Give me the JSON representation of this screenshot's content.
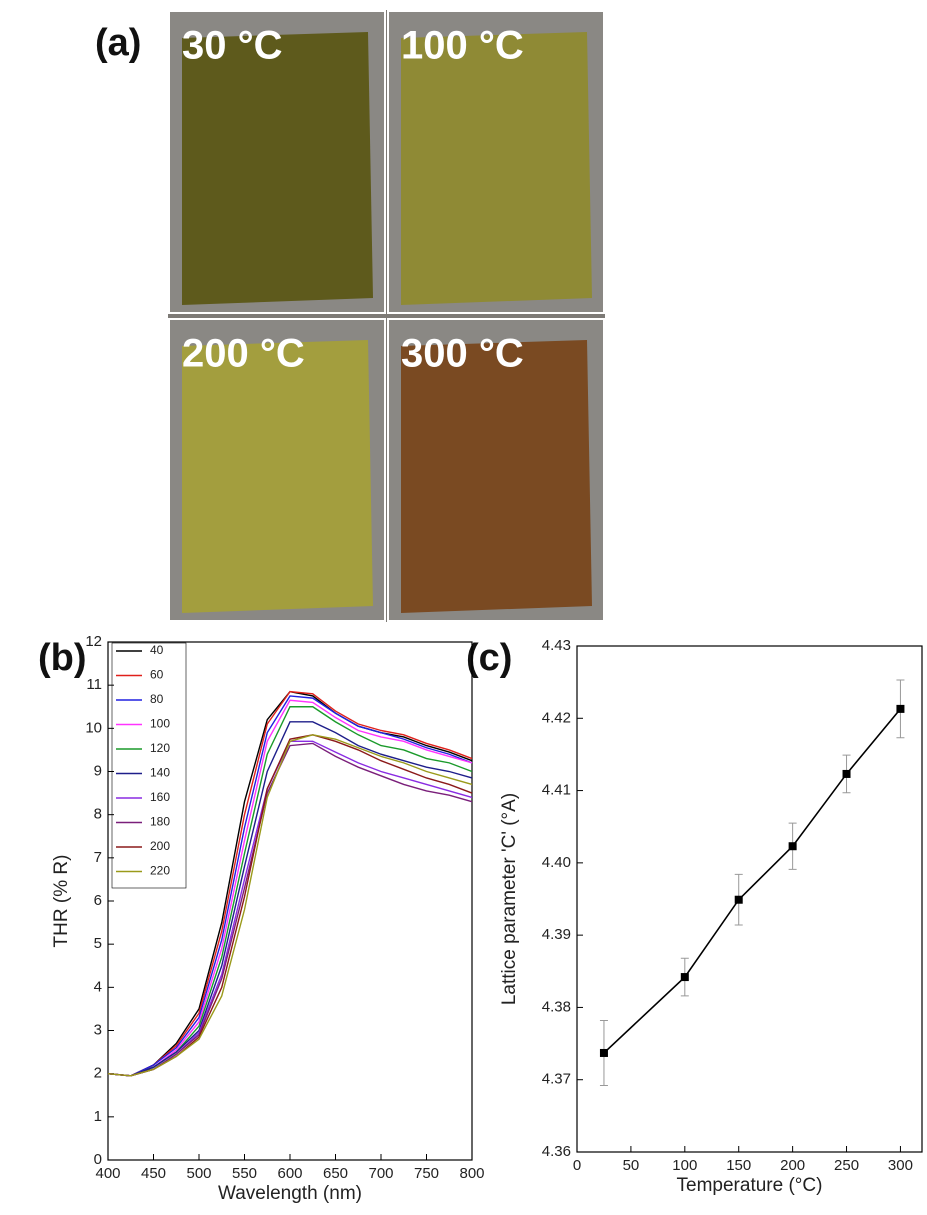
{
  "photos": {
    "label": "(a)",
    "samples": [
      {
        "label": "30 °C",
        "color": "#5e5a1c"
      },
      {
        "label": "100 °C",
        "color": "#8f8a35"
      },
      {
        "label": "200 °C",
        "color": "#a39e3e"
      },
      {
        "label": "300 °C",
        "color": "#7a4a22"
      }
    ]
  },
  "chart_data": [
    {
      "type": "line",
      "label": "(b)",
      "xlabel": "Wavelength (nm)",
      "ylabel": "THR (% R)",
      "x": [
        400,
        425,
        450,
        475,
        500,
        525,
        550,
        575,
        600,
        625,
        650,
        675,
        700,
        725,
        750,
        775,
        800
      ],
      "xlim": [
        400,
        800
      ],
      "xticks": [
        400,
        450,
        500,
        550,
        600,
        650,
        700,
        750,
        800
      ],
      "ylim": [
        0,
        12
      ],
      "yticks": [
        0,
        1,
        2,
        3,
        4,
        5,
        6,
        7,
        8,
        9,
        10,
        11,
        12
      ],
      "legend": "upper-left",
      "series": [
        {
          "name": "40",
          "color": "#000000",
          "values": [
            2.0,
            1.95,
            2.2,
            2.7,
            3.5,
            5.5,
            8.3,
            10.2,
            10.85,
            10.75,
            10.35,
            10.05,
            9.9,
            9.8,
            9.6,
            9.45,
            9.25
          ]
        },
        {
          "name": "60",
          "color": "#e0201b",
          "values": [
            2.0,
            1.95,
            2.2,
            2.65,
            3.4,
            5.3,
            8.0,
            10.1,
            10.85,
            10.8,
            10.4,
            10.1,
            9.95,
            9.85,
            9.65,
            9.5,
            9.3
          ]
        },
        {
          "name": "80",
          "color": "#2020e0",
          "values": [
            2.0,
            1.95,
            2.2,
            2.6,
            3.3,
            5.1,
            7.7,
            9.9,
            10.75,
            10.7,
            10.35,
            10.05,
            9.9,
            9.75,
            9.55,
            9.4,
            9.2
          ]
        },
        {
          "name": "100",
          "color": "#ff33ff",
          "values": [
            2.0,
            1.95,
            2.15,
            2.55,
            3.2,
            4.9,
            7.4,
            9.7,
            10.65,
            10.6,
            10.25,
            9.95,
            9.8,
            9.7,
            9.5,
            9.35,
            9.2
          ]
        },
        {
          "name": "120",
          "color": "#1a9a2a",
          "values": [
            2.0,
            1.95,
            2.15,
            2.5,
            3.1,
            4.7,
            7.1,
            9.4,
            10.5,
            10.5,
            10.15,
            9.85,
            9.6,
            9.5,
            9.3,
            9.2,
            9.0
          ]
        },
        {
          "name": "140",
          "color": "#1e1e8a",
          "values": [
            2.0,
            1.95,
            2.15,
            2.5,
            3.0,
            4.5,
            6.8,
            9.0,
            10.15,
            10.15,
            9.9,
            9.6,
            9.4,
            9.25,
            9.1,
            9.0,
            8.85
          ]
        },
        {
          "name": "160",
          "color": "#8a2be2",
          "values": [
            2.0,
            1.95,
            2.1,
            2.45,
            2.95,
            4.3,
            6.5,
            8.6,
            9.7,
            9.7,
            9.45,
            9.2,
            9.0,
            8.85,
            8.7,
            8.55,
            8.4
          ]
        },
        {
          "name": "180",
          "color": "#7a1f7a",
          "values": [
            2.0,
            1.95,
            2.1,
            2.45,
            2.9,
            4.2,
            6.3,
            8.5,
            9.6,
            9.65,
            9.35,
            9.1,
            8.9,
            8.7,
            8.55,
            8.45,
            8.3
          ]
        },
        {
          "name": "200",
          "color": "#8b1a1a",
          "values": [
            2.0,
            1.95,
            2.1,
            2.4,
            2.85,
            4.0,
            6.1,
            8.6,
            9.75,
            9.85,
            9.7,
            9.5,
            9.25,
            9.05,
            8.85,
            8.7,
            8.5
          ]
        },
        {
          "name": "220",
          "color": "#9a9a1a",
          "values": [
            2.0,
            1.95,
            2.1,
            2.4,
            2.8,
            3.8,
            5.8,
            8.4,
            9.7,
            9.85,
            9.75,
            9.55,
            9.35,
            9.2,
            9.0,
            8.85,
            8.7
          ]
        }
      ]
    },
    {
      "type": "errorline",
      "label": "(c)",
      "xlabel": "Temperature (°C)",
      "ylabel": "Lattice parameter 'C' (°A)",
      "x": [
        25,
        100,
        150,
        200,
        250,
        300
      ],
      "xlim": [
        0,
        320
      ],
      "xticks": [
        0,
        50,
        100,
        150,
        200,
        250,
        300
      ],
      "ylim": [
        4.36,
        4.43
      ],
      "yticks": [
        4.36,
        4.37,
        4.38,
        4.39,
        {
          "value": 4.4,
          "label": "4.40"
        },
        4.41,
        4.42,
        4.43
      ],
      "series": [
        {
          "color": "#000000",
          "values": [
            4.3737,
            4.3842,
            4.3949,
            4.4023,
            4.4123,
            4.4213
          ],
          "errors": [
            0.0045,
            0.0026,
            0.0035,
            0.0032,
            0.0026,
            0.004
          ],
          "error_color": "#999999"
        }
      ]
    }
  ]
}
